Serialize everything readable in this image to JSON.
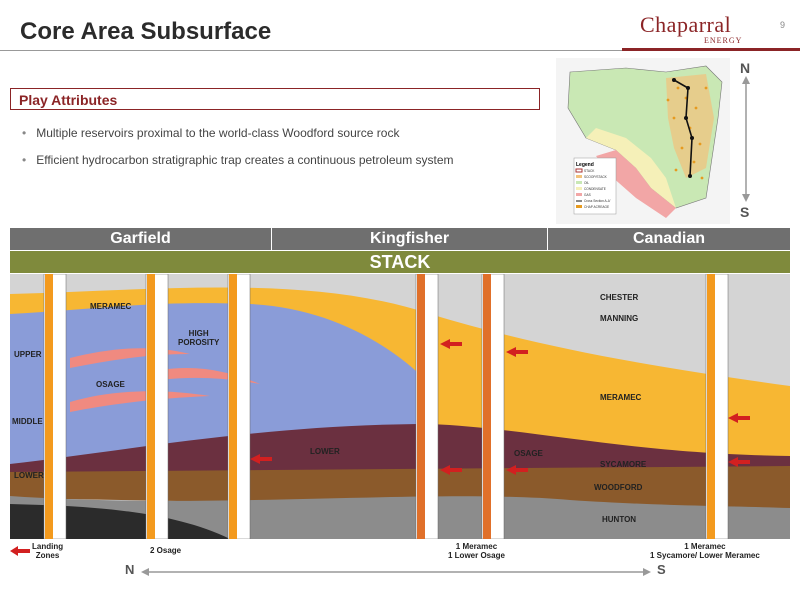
{
  "header": {
    "title": "Core Area Subsurface",
    "page_number": "9"
  },
  "logo": {
    "main": "Chaparral",
    "sub": "ENERGY"
  },
  "play_attributes": {
    "heading": "Play Attributes",
    "bullets": [
      "Multiple reservoirs proximal to the world-class Woodford source rock",
      "Efficient hydrocarbon stratigraphic trap creates a continuous petroleum system"
    ]
  },
  "map": {
    "legend_title": "Legend",
    "legend_items": [
      "STACK",
      "SCOOP/STACK",
      "OIL",
      "CONDENSATE",
      "GAS",
      "Cross Section A-A'",
      "CHAP ACREAGE"
    ]
  },
  "compass": {
    "north": "N",
    "south": "S"
  },
  "counties": [
    "Garfield",
    "Kingfisher",
    "Canadian"
  ],
  "play_name": "STACK",
  "cross_section": {
    "formation_labels": {
      "meramec_left": "MERAMEC",
      "high_porosity": "HIGH\nPOROSITY",
      "upper": "UPPER",
      "osage": "OSAGE",
      "middle": "MIDDLE",
      "lower_left": "LOWER",
      "lower_mid": "LOWER",
      "osage_right": "OSAGE",
      "chester": "CHESTER",
      "manning": "MANNING",
      "meramec_right": "MERAMEC",
      "sycamore": "SYCAMORE",
      "woodford": "WOODFORD",
      "hunton": "HUNTON"
    },
    "colors": {
      "meramec": "#f7b733",
      "osage": "#8a9cd8",
      "woodford": "#8b5a2b",
      "hunton": "#8c8c8c",
      "chester": "#d4d4d4",
      "lower_osage": "#6b3040",
      "basement": "#2b2b2b",
      "high_porosity": "#f08a80",
      "landing_arrow": "#d22020"
    }
  },
  "legend_landing": "Landing\nZones",
  "well_annotations": {
    "left": "2 Osage",
    "middle": "1 Meramec\n1 Lower Osage",
    "right": "1 Meramec\n1 Sycamore/ Lower Meramec"
  },
  "direction": {
    "north": "N",
    "south": "S"
  }
}
